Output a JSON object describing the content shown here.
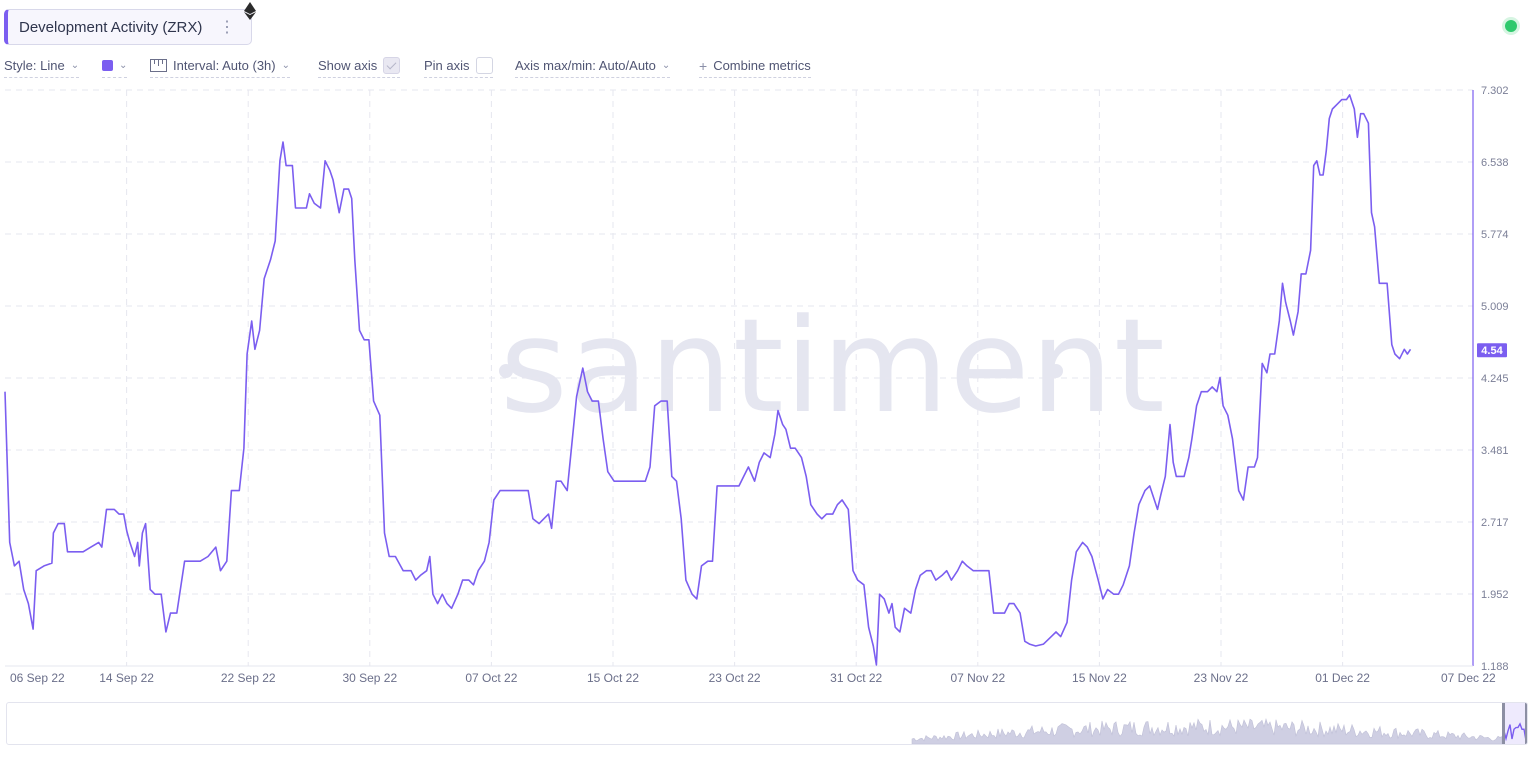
{
  "header": {
    "metric_title": "Development Activity (ZRX)",
    "menu_icon": "kebab-menu-icon",
    "eth_icon": "ethereum-icon",
    "status": {
      "color": "#2fc96d",
      "icon": "status-dot-icon"
    }
  },
  "toolbar": {
    "style": "Style: Line",
    "color": "#7b5ef0",
    "interval": "Interval: Auto (3h)",
    "show_axis": "Show axis",
    "show_axis_checked": true,
    "pin_axis": "Pin axis",
    "pin_axis_checked": false,
    "axis_maxmin": "Axis max/min: Auto/Auto",
    "combine_prefix": "+",
    "combine": "Combine metrics"
  },
  "watermark": "santiment",
  "chart_data": {
    "type": "line",
    "title": "Development Activity (ZRX)",
    "line_color": "#7b5ef0",
    "grid": true,
    "grid_style": "dashed",
    "x_ticks": [
      "06 Sep 22",
      "14 Sep 22",
      "22 Sep 22",
      "30 Sep 22",
      "07 Oct 22",
      "15 Oct 22",
      "23 Oct 22",
      "31 Oct 22",
      "07 Nov 22",
      "15 Nov 22",
      "23 Nov 22",
      "01 Dec 22",
      "07 Dec 22"
    ],
    "y_ticks": [
      "7.302",
      "6.538",
      "5.774",
      "5.009",
      "4.245",
      "3.481",
      "2.717",
      "1.952",
      "1.188"
    ],
    "ylim": [
      1.188,
      7.302
    ],
    "y_axis_side": "right",
    "last_value_label": "4.54",
    "x_day_range": [
      0,
      94
    ],
    "series": [
      {
        "values": [
          [
            0.0,
            4.1
          ],
          [
            0.3,
            2.5
          ],
          [
            0.6,
            2.25
          ],
          [
            0.9,
            2.3
          ],
          [
            1.2,
            2.0
          ],
          [
            1.5,
            1.85
          ],
          [
            1.8,
            1.58
          ],
          [
            2.0,
            2.2
          ],
          [
            2.5,
            2.25
          ],
          [
            3.0,
            2.28
          ],
          [
            3.1,
            2.6
          ],
          [
            3.4,
            2.7
          ],
          [
            3.8,
            2.7
          ],
          [
            4.0,
            2.4
          ],
          [
            5.0,
            2.4
          ],
          [
            5.5,
            2.45
          ],
          [
            6.0,
            2.5
          ],
          [
            6.2,
            2.45
          ],
          [
            6.5,
            2.85
          ],
          [
            7.0,
            2.85
          ],
          [
            7.3,
            2.8
          ],
          [
            7.6,
            2.8
          ],
          [
            7.8,
            2.62
          ],
          [
            8.0,
            2.5
          ],
          [
            8.3,
            2.35
          ],
          [
            8.5,
            2.5
          ],
          [
            8.6,
            2.25
          ],
          [
            8.8,
            2.6
          ],
          [
            9.0,
            2.7
          ],
          [
            9.3,
            2.0
          ],
          [
            9.6,
            1.95
          ],
          [
            10.0,
            1.95
          ],
          [
            10.3,
            1.55
          ],
          [
            10.6,
            1.75
          ],
          [
            11.0,
            1.75
          ],
          [
            11.5,
            2.3
          ],
          [
            12.0,
            2.3
          ],
          [
            12.5,
            2.3
          ],
          [
            13.0,
            2.35
          ],
          [
            13.5,
            2.45
          ],
          [
            13.8,
            2.2
          ],
          [
            14.2,
            2.3
          ],
          [
            14.5,
            3.05
          ],
          [
            15.0,
            3.05
          ],
          [
            15.3,
            3.5
          ],
          [
            15.5,
            4.5
          ],
          [
            15.8,
            4.85
          ],
          [
            16.0,
            4.55
          ],
          [
            16.3,
            4.75
          ],
          [
            16.6,
            5.3
          ],
          [
            17.0,
            5.5
          ],
          [
            17.3,
            5.7
          ],
          [
            17.6,
            6.55
          ],
          [
            17.8,
            6.75
          ],
          [
            18.0,
            6.5
          ],
          [
            18.4,
            6.5
          ],
          [
            18.6,
            6.05
          ],
          [
            19.0,
            6.05
          ],
          [
            19.3,
            6.05
          ],
          [
            19.5,
            6.2
          ],
          [
            19.8,
            6.1
          ],
          [
            20.2,
            6.05
          ],
          [
            20.5,
            6.55
          ],
          [
            20.8,
            6.45
          ],
          [
            21.0,
            6.35
          ],
          [
            21.4,
            6.0
          ],
          [
            21.7,
            6.25
          ],
          [
            22.0,
            6.25
          ],
          [
            22.2,
            6.15
          ],
          [
            22.4,
            5.5
          ],
          [
            22.7,
            4.75
          ],
          [
            23.0,
            4.65
          ],
          [
            23.3,
            4.65
          ],
          [
            23.6,
            4.0
          ],
          [
            24.0,
            3.85
          ],
          [
            24.3,
            2.6
          ],
          [
            24.6,
            2.35
          ],
          [
            25.0,
            2.35
          ],
          [
            25.5,
            2.2
          ],
          [
            26.0,
            2.2
          ],
          [
            26.3,
            2.1
          ],
          [
            26.6,
            2.15
          ],
          [
            27.0,
            2.2
          ],
          [
            27.2,
            2.35
          ],
          [
            27.4,
            1.95
          ],
          [
            27.7,
            1.85
          ],
          [
            28.0,
            1.95
          ],
          [
            28.3,
            1.85
          ],
          [
            28.6,
            1.8
          ],
          [
            29.0,
            1.95
          ],
          [
            29.3,
            2.1
          ],
          [
            29.7,
            2.1
          ],
          [
            30.0,
            2.05
          ],
          [
            30.3,
            2.2
          ],
          [
            30.7,
            2.3
          ],
          [
            31.0,
            2.5
          ],
          [
            31.3,
            2.95
          ],
          [
            31.7,
            3.05
          ],
          [
            32.0,
            3.05
          ],
          [
            32.5,
            3.05
          ],
          [
            33.0,
            3.05
          ],
          [
            33.5,
            3.05
          ],
          [
            33.8,
            2.75
          ],
          [
            34.2,
            2.7
          ],
          [
            34.5,
            2.75
          ],
          [
            34.8,
            2.8
          ],
          [
            35.0,
            2.65
          ],
          [
            35.3,
            3.15
          ],
          [
            35.6,
            3.15
          ],
          [
            36.0,
            3.05
          ],
          [
            36.3,
            3.55
          ],
          [
            36.6,
            4.05
          ],
          [
            37.0,
            4.35
          ],
          [
            37.3,
            4.1
          ],
          [
            37.6,
            4.0
          ],
          [
            38.0,
            4.0
          ],
          [
            38.3,
            3.6
          ],
          [
            38.6,
            3.25
          ],
          [
            39.0,
            3.15
          ],
          [
            39.5,
            3.15
          ],
          [
            40.0,
            3.15
          ],
          [
            40.5,
            3.15
          ],
          [
            41.0,
            3.15
          ],
          [
            41.3,
            3.3
          ],
          [
            41.6,
            3.95
          ],
          [
            42.0,
            4.0
          ],
          [
            42.4,
            4.0
          ],
          [
            42.7,
            3.2
          ],
          [
            43.0,
            3.15
          ],
          [
            43.3,
            2.75
          ],
          [
            43.6,
            2.1
          ],
          [
            44.0,
            1.95
          ],
          [
            44.3,
            1.9
          ],
          [
            44.6,
            2.25
          ],
          [
            45.0,
            2.3
          ],
          [
            45.3,
            2.3
          ],
          [
            45.6,
            3.1
          ],
          [
            46.0,
            3.1
          ],
          [
            46.5,
            3.1
          ],
          [
            47.0,
            3.1
          ],
          [
            47.3,
            3.2
          ],
          [
            47.6,
            3.3
          ],
          [
            48.0,
            3.15
          ],
          [
            48.3,
            3.35
          ],
          [
            48.6,
            3.45
          ],
          [
            49.0,
            3.4
          ],
          [
            49.3,
            3.65
          ],
          [
            49.5,
            3.9
          ],
          [
            49.8,
            3.75
          ],
          [
            50.0,
            3.7
          ],
          [
            50.3,
            3.5
          ],
          [
            50.6,
            3.5
          ],
          [
            51.0,
            3.4
          ],
          [
            51.3,
            3.2
          ],
          [
            51.6,
            2.9
          ],
          [
            52.0,
            2.8
          ],
          [
            52.3,
            2.75
          ],
          [
            52.6,
            2.8
          ],
          [
            53.0,
            2.8
          ],
          [
            53.3,
            2.9
          ],
          [
            53.6,
            2.95
          ],
          [
            54.0,
            2.85
          ],
          [
            54.3,
            2.2
          ],
          [
            54.6,
            2.1
          ],
          [
            55.0,
            2.05
          ],
          [
            55.3,
            1.6
          ],
          [
            55.6,
            1.4
          ],
          [
            55.8,
            1.2
          ],
          [
            56.0,
            1.95
          ],
          [
            56.3,
            1.9
          ],
          [
            56.6,
            1.75
          ],
          [
            56.8,
            1.85
          ],
          [
            57.0,
            1.6
          ],
          [
            57.3,
            1.55
          ],
          [
            57.6,
            1.8
          ],
          [
            58.0,
            1.75
          ],
          [
            58.3,
            2.0
          ],
          [
            58.6,
            2.15
          ],
          [
            59.0,
            2.2
          ],
          [
            59.3,
            2.2
          ],
          [
            59.6,
            2.1
          ],
          [
            60.0,
            2.15
          ],
          [
            60.3,
            2.2
          ],
          [
            60.6,
            2.1
          ],
          [
            61.0,
            2.2
          ],
          [
            61.3,
            2.3
          ],
          [
            61.6,
            2.25
          ],
          [
            62.0,
            2.2
          ],
          [
            62.5,
            2.2
          ],
          [
            63.0,
            2.2
          ],
          [
            63.3,
            1.75
          ],
          [
            63.6,
            1.75
          ],
          [
            64.0,
            1.75
          ],
          [
            64.3,
            1.85
          ],
          [
            64.6,
            1.85
          ],
          [
            65.0,
            1.75
          ],
          [
            65.3,
            1.45
          ],
          [
            65.6,
            1.42
          ],
          [
            66.0,
            1.4
          ],
          [
            66.5,
            1.42
          ],
          [
            67.0,
            1.5
          ],
          [
            67.3,
            1.55
          ],
          [
            67.6,
            1.5
          ],
          [
            68.0,
            1.65
          ],
          [
            68.3,
            2.1
          ],
          [
            68.6,
            2.4
          ],
          [
            69.0,
            2.5
          ],
          [
            69.3,
            2.45
          ],
          [
            69.6,
            2.35
          ],
          [
            70.0,
            2.1
          ],
          [
            70.3,
            1.9
          ],
          [
            70.6,
            2.0
          ],
          [
            71.0,
            1.95
          ],
          [
            71.3,
            1.95
          ],
          [
            71.6,
            2.05
          ],
          [
            72.0,
            2.25
          ],
          [
            72.3,
            2.6
          ],
          [
            72.6,
            2.9
          ],
          [
            73.0,
            3.05
          ],
          [
            73.3,
            3.1
          ],
          [
            73.6,
            2.95
          ],
          [
            73.8,
            2.85
          ],
          [
            74.0,
            3.0
          ],
          [
            74.3,
            3.2
          ],
          [
            74.6,
            3.75
          ],
          [
            74.8,
            3.35
          ],
          [
            75.0,
            3.2
          ],
          [
            75.5,
            3.2
          ],
          [
            75.8,
            3.4
          ],
          [
            76.0,
            3.6
          ],
          [
            76.3,
            3.95
          ],
          [
            76.6,
            4.1
          ],
          [
            77.0,
            4.1
          ],
          [
            77.3,
            4.15
          ],
          [
            77.6,
            4.1
          ],
          [
            77.8,
            4.25
          ],
          [
            78.0,
            3.95
          ],
          [
            78.3,
            3.85
          ],
          [
            78.6,
            3.6
          ],
          [
            79.0,
            3.05
          ],
          [
            79.3,
            2.95
          ],
          [
            79.6,
            3.3
          ],
          [
            80.0,
            3.3
          ],
          [
            80.2,
            3.4
          ],
          [
            80.5,
            4.4
          ],
          [
            80.8,
            4.3
          ],
          [
            81.0,
            4.5
          ],
          [
            81.3,
            4.5
          ],
          [
            81.6,
            4.85
          ],
          [
            81.8,
            5.25
          ],
          [
            82.0,
            5.05
          ],
          [
            82.3,
            4.85
          ],
          [
            82.5,
            4.7
          ],
          [
            82.8,
            4.95
          ],
          [
            83.0,
            5.35
          ],
          [
            83.3,
            5.35
          ],
          [
            83.6,
            5.6
          ],
          [
            83.8,
            6.5
          ],
          [
            84.0,
            6.55
          ],
          [
            84.2,
            6.4
          ],
          [
            84.4,
            6.4
          ],
          [
            84.6,
            6.65
          ],
          [
            84.8,
            7.0
          ],
          [
            85.0,
            7.1
          ],
          [
            85.3,
            7.15
          ],
          [
            85.6,
            7.2
          ],
          [
            85.9,
            7.2
          ],
          [
            86.1,
            7.25
          ],
          [
            86.4,
            7.1
          ],
          [
            86.6,
            6.8
          ],
          [
            86.8,
            7.05
          ],
          [
            87.0,
            7.05
          ],
          [
            87.3,
            6.95
          ],
          [
            87.5,
            6.0
          ],
          [
            87.7,
            5.85
          ],
          [
            88.0,
            5.25
          ],
          [
            88.3,
            5.25
          ],
          [
            88.5,
            5.25
          ],
          [
            88.8,
            4.6
          ],
          [
            89.0,
            4.5
          ],
          [
            89.3,
            4.45
          ],
          [
            89.6,
            4.55
          ],
          [
            89.8,
            4.5
          ],
          [
            90.0,
            4.55
          ]
        ]
      }
    ]
  },
  "navigator": {
    "overview_color": "#cfcfe3",
    "line_color": "#7b5ef0"
  }
}
